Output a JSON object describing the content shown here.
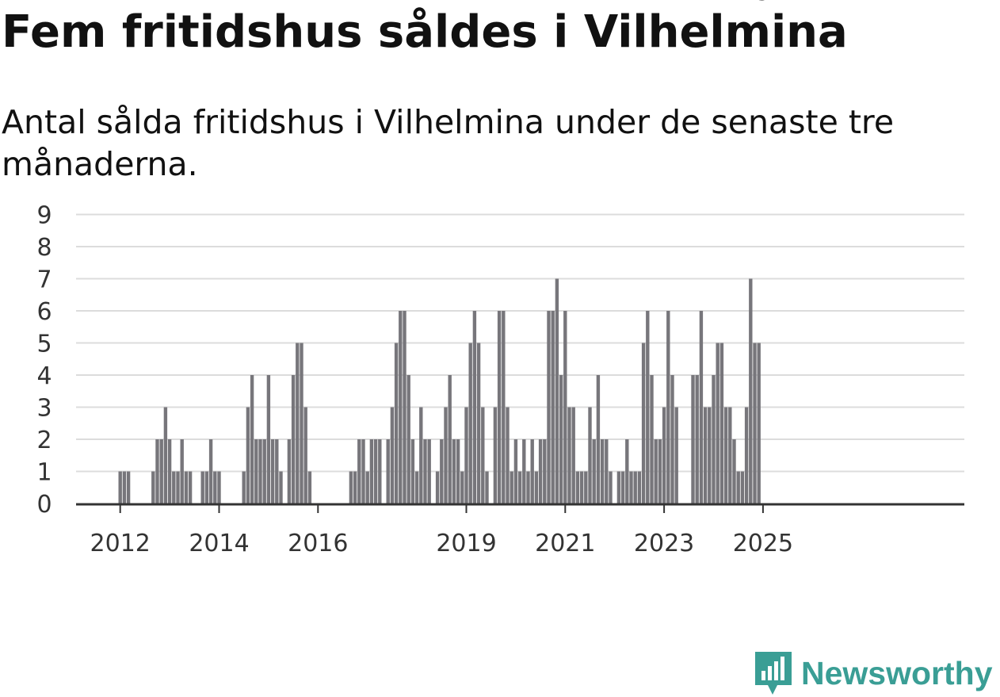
{
  "title": "Fem fritidshus såldes i Vilhelmina",
  "subtitle": "Antal sålda fritidshus i Vilhelmina under de senaste tre månaderna.",
  "brand": "Newsworthy",
  "colors": {
    "bar": "#77767b",
    "highlight": "#20a090",
    "grid": "#dcdcdc",
    "brand": "#3a9e95"
  },
  "chart_data": {
    "type": "bar",
    "xlabel": "",
    "ylabel": "",
    "ylim": [
      0,
      9
    ],
    "yticks": [
      0,
      1,
      2,
      3,
      4,
      5,
      6,
      7,
      8,
      9
    ],
    "xticks": [
      "2012",
      "2014",
      "2016",
      "2019",
      "2021",
      "2023",
      "2025"
    ],
    "grid": true,
    "start": "2011-12",
    "values": [
      0,
      1,
      1,
      1,
      0,
      0,
      0,
      0,
      0,
      1,
      2,
      2,
      3,
      2,
      1,
      1,
      2,
      1,
      1,
      0,
      0,
      1,
      1,
      2,
      1,
      1,
      0,
      0,
      0,
      0,
      0,
      1,
      3,
      4,
      2,
      2,
      2,
      4,
      2,
      2,
      1,
      0,
      2,
      4,
      5,
      5,
      3,
      1,
      0,
      0,
      0,
      0,
      0,
      0,
      0,
      0,
      0,
      1,
      1,
      2,
      2,
      1,
      2,
      2,
      2,
      0,
      2,
      3,
      5,
      6,
      6,
      4,
      2,
      1,
      3,
      2,
      2,
      0,
      1,
      2,
      3,
      4,
      2,
      2,
      1,
      3,
      5,
      6,
      5,
      3,
      1,
      0,
      3,
      6,
      6,
      3,
      1,
      2,
      1,
      2,
      1,
      2,
      1,
      2,
      2,
      6,
      6,
      7,
      4,
      6,
      3,
      3,
      1,
      1,
      1,
      3,
      2,
      4,
      2,
      2,
      1,
      0,
      1,
      1,
      2,
      1,
      1,
      1,
      5,
      6,
      4,
      2,
      2,
      3,
      6,
      4,
      3,
      0,
      0,
      0,
      4,
      4,
      6,
      3,
      3,
      4,
      5,
      5,
      3,
      3,
      2,
      1,
      1,
      3,
      7,
      5,
      5
    ],
    "highlight_index": 157,
    "highlight_label": "5"
  }
}
